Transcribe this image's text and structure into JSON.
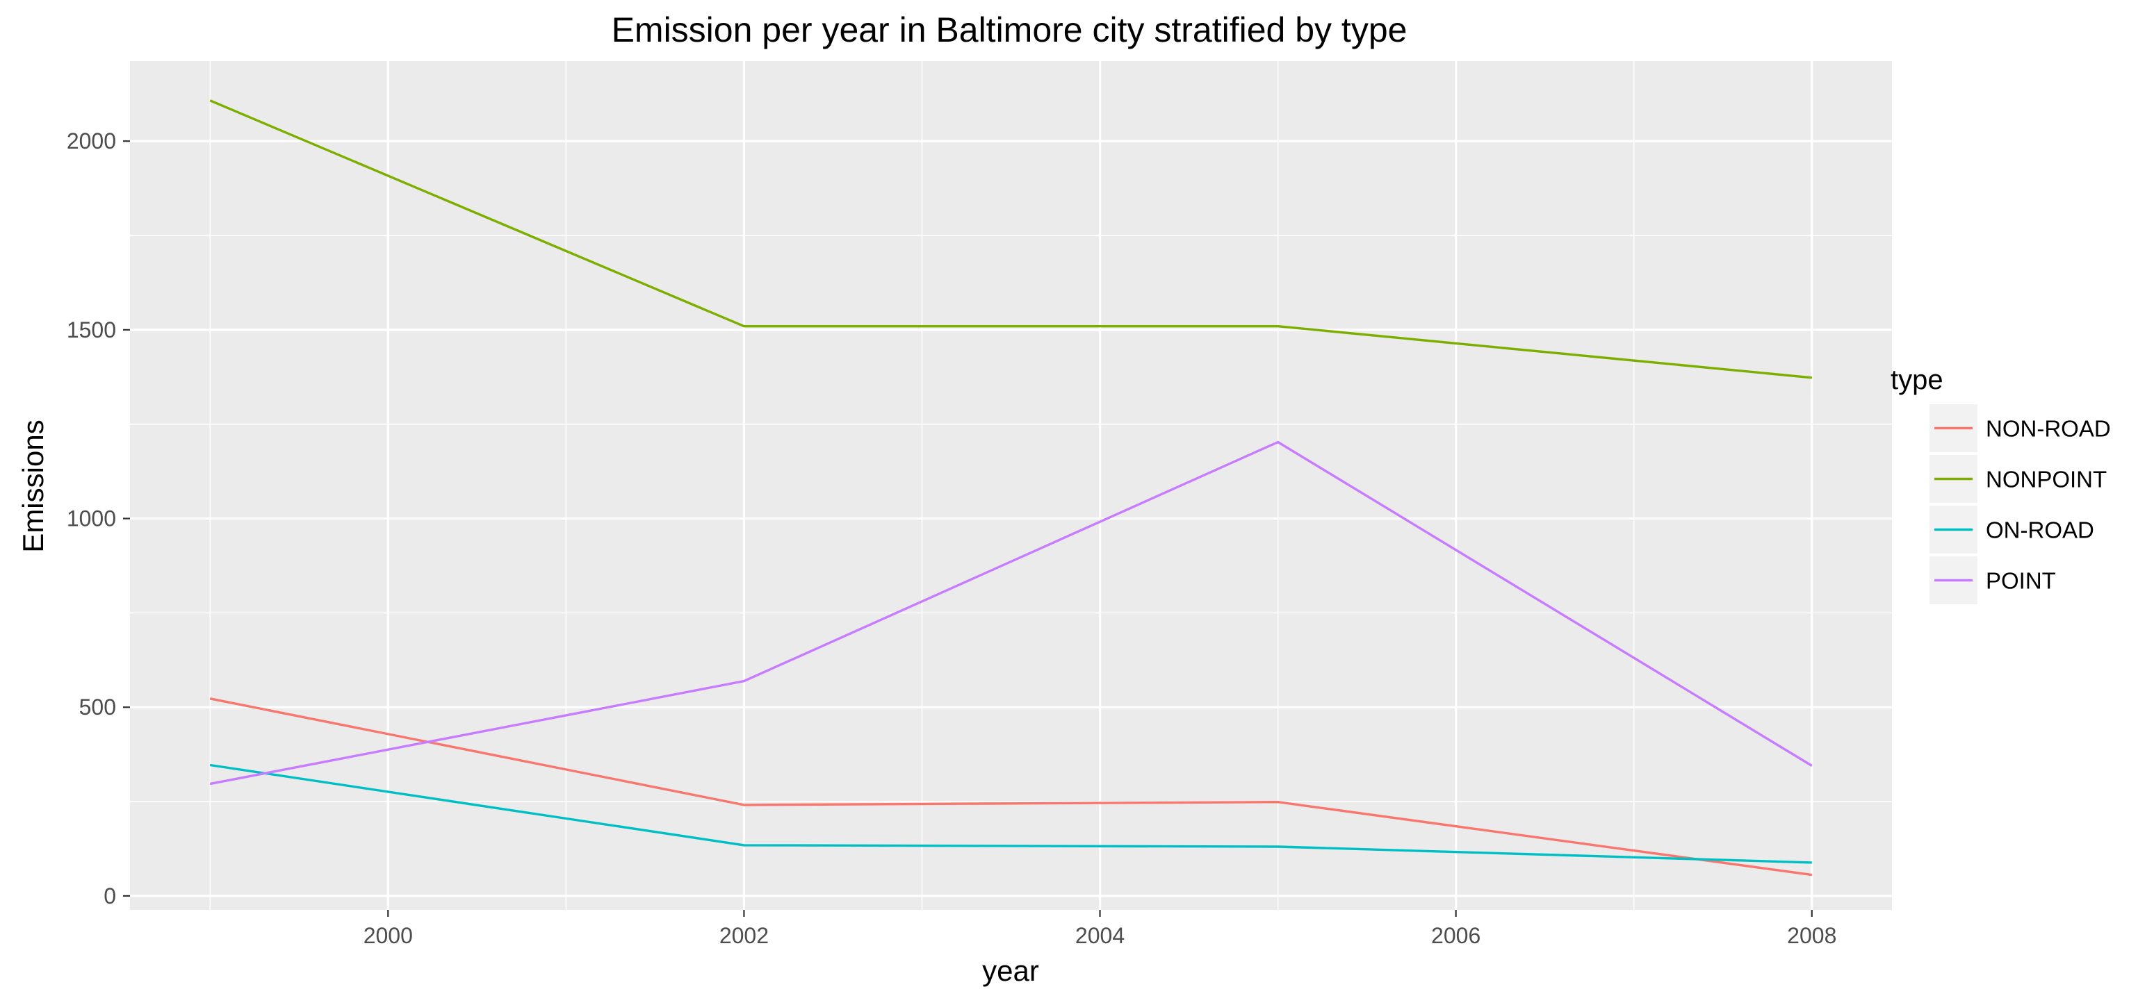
{
  "chart_data": {
    "type": "line",
    "title": "Emission per year in Baltimore city stratified by type",
    "xlabel": "year",
    "ylabel": "Emissions",
    "x": [
      1999,
      2002,
      2005,
      2008
    ],
    "x_ticks": [
      2000,
      2002,
      2004,
      2006,
      2008
    ],
    "x_tick_labels": [
      "2000",
      "2002",
      "2004",
      "2006",
      "2008"
    ],
    "y_ticks": [
      0,
      500,
      1000,
      1500,
      2000
    ],
    "y_tick_labels": [
      "0",
      "500",
      "1000",
      "1500",
      "2000"
    ],
    "xlim": [
      1998.55,
      2008.45
    ],
    "ylim": [
      -37,
      2212
    ],
    "grid": true,
    "legend": {
      "title": "type",
      "position": "right"
    },
    "series": [
      {
        "name": "NON-ROAD",
        "color": "#F8766D",
        "values": [
          522.9,
          241.1,
          248.9,
          55.8
        ]
      },
      {
        "name": "NONPOINT",
        "color": "#7CAE00",
        "values": [
          2107.6,
          1509.5,
          1509.5,
          1373.2
        ]
      },
      {
        "name": "ON-ROAD",
        "color": "#00BFC4",
        "values": [
          346.8,
          134.3,
          130.4,
          88.3
        ]
      },
      {
        "name": "POINT",
        "color": "#C77CFF",
        "values": [
          296.8,
          569.3,
          1202.5,
          344.98
        ]
      }
    ]
  }
}
